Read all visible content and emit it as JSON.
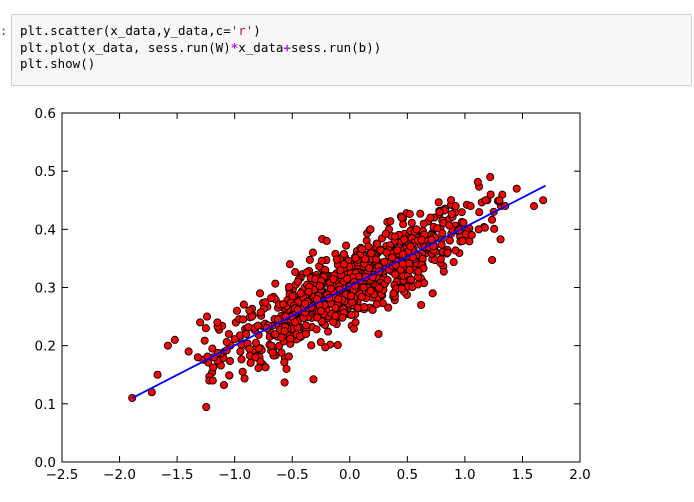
{
  "cell": {
    "prompt": ":",
    "lines": [
      [
        "plt.scatter(x_data,y_data,c=",
        "'r'",
        ")"
      ],
      [
        "plt.plot(x_data, sess.run(W)",
        "*",
        "x_data",
        "+",
        "sess.run(b))"
      ],
      [
        "plt.show()"
      ]
    ]
  },
  "chart_data": {
    "type": "scatter",
    "title": "",
    "xlabel": "",
    "ylabel": "",
    "xlim": [
      -2.5,
      2.0
    ],
    "ylim": [
      0.0,
      0.6
    ],
    "x_ticks": [
      "−2.5",
      "−2.0",
      "−1.5",
      "−1.0",
      "−0.5",
      "0.0",
      "0.5",
      "1.0",
      "1.5",
      "2.0"
    ],
    "y_ticks": [
      "0.0",
      "0.1",
      "0.2",
      "0.3",
      "0.4",
      "0.5",
      "0.6"
    ],
    "grid": false,
    "scatter_series": {
      "color": "#ff0000",
      "edge_color": "#000000",
      "points": [
        [
          -1.89,
          0.11
        ],
        [
          -1.72,
          0.12
        ],
        [
          -1.67,
          0.15
        ],
        [
          -1.58,
          0.2
        ],
        [
          -1.52,
          0.21
        ],
        [
          -1.4,
          0.19
        ],
        [
          -1.32,
          0.18
        ],
        [
          -1.3,
          0.24
        ],
        [
          -1.25,
          0.23
        ],
        [
          -1.24,
          0.25
        ],
        [
          -1.22,
          0.14
        ],
        [
          -1.19,
          0.14
        ],
        [
          -1.18,
          0.18
        ],
        [
          -1.15,
          0.24
        ],
        [
          -1.05,
          0.22
        ],
        [
          -0.98,
          0.26
        ],
        [
          -0.95,
          0.19
        ],
        [
          -0.9,
          0.22
        ],
        [
          -0.85,
          0.25
        ],
        [
          -0.82,
          0.18
        ],
        [
          -0.78,
          0.29
        ],
        [
          -0.72,
          0.23
        ],
        [
          -0.68,
          0.2
        ],
        [
          -0.55,
          0.16
        ],
        [
          -0.52,
          0.34
        ],
        [
          -0.45,
          0.31
        ],
        [
          -0.38,
          0.22
        ],
        [
          -0.32,
          0.36
        ],
        [
          -0.25,
          0.26
        ],
        [
          -0.2,
          0.38
        ],
        [
          -0.1,
          0.28
        ],
        [
          -0.05,
          0.34
        ],
        [
          0.05,
          0.24
        ],
        [
          0.12,
          0.3
        ],
        [
          0.18,
          0.4
        ],
        [
          0.25,
          0.22
        ],
        [
          0.32,
          0.36
        ],
        [
          0.38,
          0.29
        ],
        [
          0.45,
          0.42
        ],
        [
          0.52,
          0.33
        ],
        [
          0.58,
          0.4
        ],
        [
          0.62,
          0.27
        ],
        [
          0.7,
          0.42
        ],
        [
          0.72,
          0.29
        ],
        [
          0.78,
          0.43
        ],
        [
          0.85,
          0.36
        ],
        [
          0.92,
          0.44
        ],
        [
          0.98,
          0.38
        ],
        [
          1.05,
          0.44
        ],
        [
          1.12,
          0.4
        ],
        [
          1.18,
          0.45
        ],
        [
          1.22,
          0.49
        ],
        [
          1.25,
          0.43
        ],
        [
          1.3,
          0.45
        ],
        [
          1.35,
          0.44
        ],
        [
          1.45,
          0.47
        ],
        [
          1.6,
          0.44
        ],
        [
          1.68,
          0.45
        ]
      ]
    },
    "line_series": {
      "color": "#0000ff",
      "x": [
        -1.89,
        1.7
      ],
      "y": [
        0.11,
        0.475
      ]
    },
    "cluster": {
      "x_mean": 0.0,
      "x_std": 0.55,
      "slope": 0.102,
      "intercept": 0.303,
      "noise_std": 0.032,
      "count": 900
    }
  }
}
